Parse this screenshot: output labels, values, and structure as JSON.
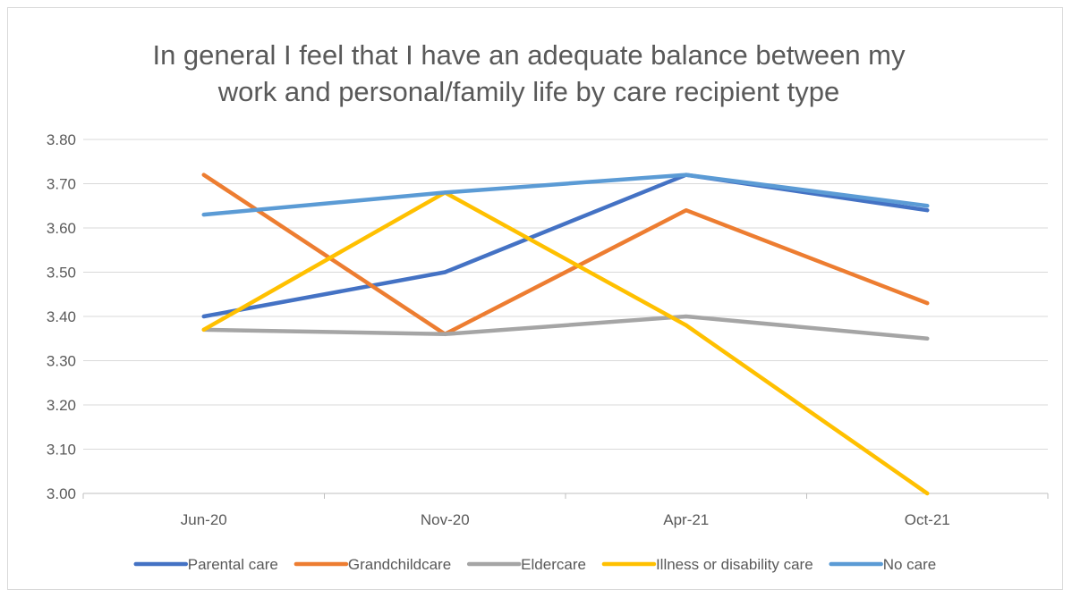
{
  "chart_data": {
    "type": "line",
    "title_lines": [
      "In general I feel that I have an adequate balance between my",
      "work and personal/family life by care recipient type"
    ],
    "categories": [
      "Jun-20",
      "Nov-20",
      "Apr-21",
      "Oct-21"
    ],
    "ylim": [
      3.0,
      3.8
    ],
    "yticks": [
      "3.00",
      "3.10",
      "3.20",
      "3.30",
      "3.40",
      "3.50",
      "3.60",
      "3.70",
      "3.80"
    ],
    "grid": true,
    "legend_position": "bottom",
    "series": [
      {
        "name": "Parental care",
        "color": "#4472c4",
        "values": [
          3.4,
          3.5,
          3.72,
          3.64
        ]
      },
      {
        "name": "Grandchildcare",
        "color": "#ed7d31",
        "values": [
          3.72,
          3.36,
          3.64,
          3.43
        ]
      },
      {
        "name": "Eldercare",
        "color": "#a5a5a5",
        "values": [
          3.37,
          3.36,
          3.4,
          3.35
        ]
      },
      {
        "name": "Illness or disability care",
        "color": "#ffc000",
        "values": [
          3.37,
          3.68,
          3.38,
          3.0
        ]
      },
      {
        "name": "No care",
        "color": "#5b9bd5",
        "values": [
          3.63,
          3.68,
          3.72,
          3.65
        ]
      }
    ]
  }
}
